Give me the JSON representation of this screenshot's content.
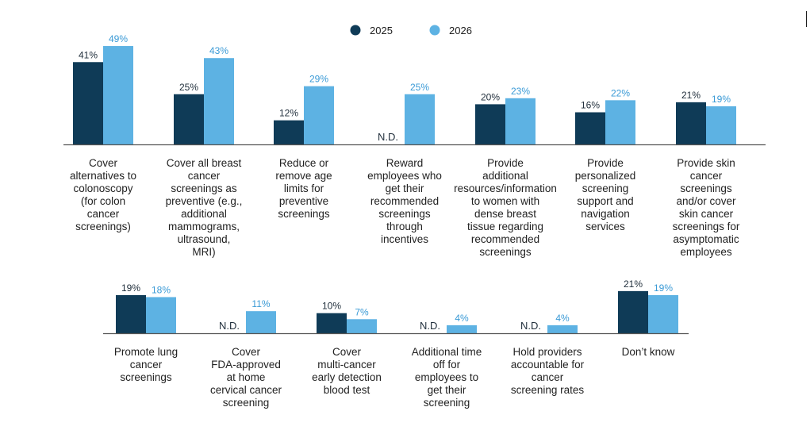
{
  "colors": {
    "series_2025": "#0f3b57",
    "series_2026": "#5db2e3",
    "label_2025": "#1f2d3a",
    "label_2026": "#3a9ad6",
    "axis": "#555555",
    "category_text": "#222222"
  },
  "legend": {
    "placement": "top-center",
    "items": [
      {
        "name": "2025",
        "color_key": "series_2025"
      },
      {
        "name": "2026",
        "color_key": "series_2026"
      }
    ]
  },
  "chart_data": [
    {
      "type": "bar",
      "title": "",
      "xlabel": "",
      "ylabel": "",
      "unit": "%",
      "grid": false,
      "categories": [
        "Cover alternatives to colonoscopy (for colon cancer screenings)",
        "Cover all breast cancer screenings as preventive (e.g., additional mammograms, ultrasound, MRI)",
        "Reduce or remove age limits for preventive screenings",
        "Reward employees who get their recommended screenings through incentives",
        "Provide additional resources/information to women with dense breast tissue regarding recommended screenings",
        "Provide personalized screening support and navigation services",
        "Provide skin cancer screenings and/or cover skin cancer screenings for asymptomatic employees"
      ],
      "category_lines": [
        [
          "Cover",
          "alternatives to",
          "colonoscopy",
          "(for colon",
          "cancer",
          "screenings)"
        ],
        [
          "Cover all breast",
          "cancer",
          "screenings as",
          "preventive (e.g.,",
          "additional",
          "mammograms,",
          "ultrasound,",
          "MRI)"
        ],
        [
          "Reduce or",
          "remove age",
          "limits for",
          "preventive",
          "screenings"
        ],
        [
          "Reward",
          "employees who",
          "get their",
          "recommended",
          "screenings",
          "through",
          "incentives"
        ],
        [
          "Provide",
          "additional",
          "resources/information",
          "to women with",
          "dense breast",
          "tissue regarding",
          "recommended",
          "screenings"
        ],
        [
          "Provide",
          "personalized",
          "screening",
          "support and",
          "navigation",
          "services"
        ],
        [
          "Provide skin",
          "cancer",
          "screenings",
          "and/or cover",
          "skin cancer",
          "screenings for",
          "asymptomatic",
          "employees"
        ]
      ],
      "series": [
        {
          "name": "2025",
          "values": [
            41,
            25,
            12,
            null,
            20,
            16,
            21
          ],
          "labels": [
            "41%",
            "25%",
            "12%",
            "N.D.",
            "20%",
            "16%",
            "21%"
          ]
        },
        {
          "name": "2026",
          "values": [
            49,
            43,
            29,
            25,
            23,
            22,
            19
          ],
          "labels": [
            "49%",
            "43%",
            "29%",
            "25%",
            "23%",
            "22%",
            "19%"
          ]
        }
      ]
    },
    {
      "type": "bar",
      "title": "",
      "xlabel": "",
      "ylabel": "",
      "unit": "%",
      "grid": false,
      "categories": [
        "Promote lung cancer screenings",
        "Cover FDA-approved at home cervical cancer screening",
        "Cover multi-cancer early detection blood test",
        "Additional time off for employees to get their screening",
        "Hold providers accountable for cancer screening rates",
        "Don’t know"
      ],
      "category_lines": [
        [
          "Promote lung",
          "cancer",
          "screenings"
        ],
        [
          "Cover",
          "FDA-approved",
          "at home",
          "cervical cancer",
          "screening"
        ],
        [
          "Cover",
          "multi-cancer",
          "early detection",
          "blood test"
        ],
        [
          "Additional time",
          "off for",
          "employees to",
          "get their",
          "screening"
        ],
        [
          "Hold providers",
          "accountable for",
          "cancer",
          "screening rates"
        ],
        [
          "Don’t know"
        ]
      ],
      "series": [
        {
          "name": "2025",
          "values": [
            19,
            null,
            10,
            null,
            null,
            21
          ],
          "labels": [
            "19%",
            "N.D.",
            "10%",
            "N.D.",
            "N.D.",
            "21%"
          ]
        },
        {
          "name": "2026",
          "values": [
            18,
            11,
            7,
            4,
            4,
            19
          ],
          "labels": [
            "18%",
            "11%",
            "7%",
            "4%",
            "4%",
            "19%"
          ]
        }
      ]
    }
  ]
}
